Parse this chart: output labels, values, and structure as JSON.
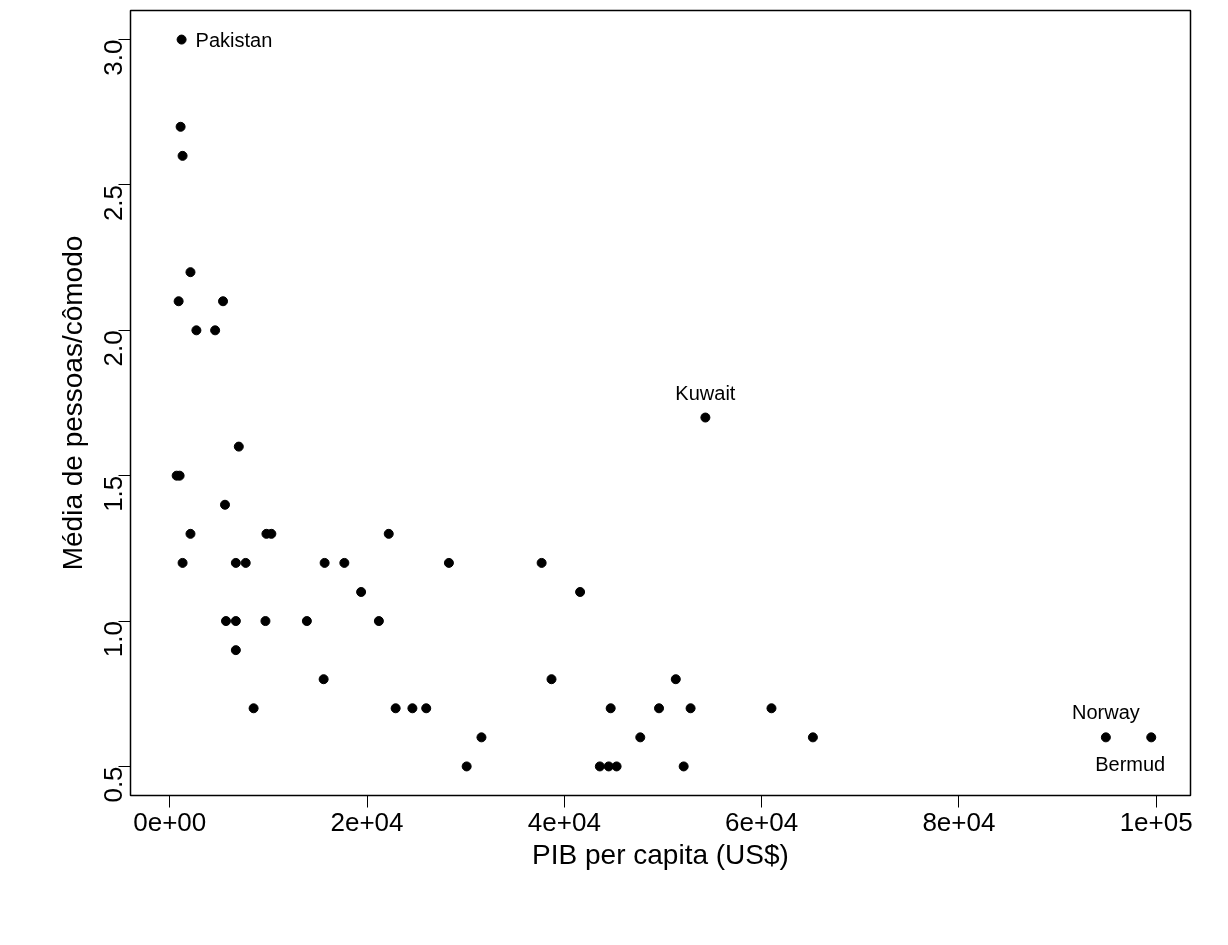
{
  "chart_data": {
    "type": "scatter",
    "xlabel": "PIB per capita (US$)",
    "ylabel": "Média de pessoas/cômodo",
    "color": "#000000",
    "marker": "circle",
    "grid": false,
    "x": [
      1200,
      1100,
      1300,
      2100,
      900,
      5400,
      2700,
      4600,
      54300,
      700,
      1000,
      7000,
      5600,
      2100,
      9800,
      10300,
      22200,
      1300,
      6700,
      7700,
      15700,
      17700,
      28300,
      37700,
      41600,
      19400,
      5700,
      6700,
      9700,
      13900,
      21200,
      6700,
      15600,
      38700,
      51300,
      8500,
      22900,
      24600,
      26000,
      44700,
      49600,
      52800,
      61000,
      31600,
      47700,
      65200,
      94900,
      99500,
      30100,
      43600,
      44500,
      45300,
      52100
    ],
    "values": [
      3.0,
      2.7,
      2.6,
      2.2,
      2.1,
      2.1,
      2.0,
      2.0,
      1.7,
      1.5,
      1.5,
      1.6,
      1.4,
      1.3,
      1.3,
      1.3,
      1.3,
      1.2,
      1.2,
      1.2,
      1.2,
      1.2,
      1.2,
      1.2,
      1.1,
      1.1,
      1.0,
      1.0,
      1.0,
      1.0,
      1.0,
      0.9,
      0.8,
      0.8,
      0.8,
      0.7,
      0.7,
      0.7,
      0.7,
      0.7,
      0.7,
      0.7,
      0.7,
      0.6,
      0.6,
      0.6,
      0.6,
      0.6,
      0.5,
      0.5,
      0.5,
      0.5,
      0.5
    ],
    "xlim": [
      -3980,
      103480
    ],
    "ylim": [
      0.4,
      3.1
    ],
    "xticks": [
      {
        "value": 0,
        "label": "0e+00"
      },
      {
        "value": 20000,
        "label": "2e+04"
      },
      {
        "value": 40000,
        "label": "4e+04"
      },
      {
        "value": 60000,
        "label": "6e+04"
      },
      {
        "value": 80000,
        "label": "8e+04"
      },
      {
        "value": 100000,
        "label": "1e+05"
      }
    ],
    "yticks": [
      0.5,
      {
        "value": 1,
        "label": "1.0"
      },
      1.5,
      {
        "value": 2,
        "label": "2.0"
      },
      2.5,
      {
        "value": 3,
        "label": "3.0"
      }
    ],
    "annotations": [
      {
        "text": "Pakistan",
        "x": 1200,
        "y": 3.0
      },
      {
        "text": "Kuwait",
        "x": 54300,
        "y": 1.7
      },
      {
        "text": "Norway",
        "x": 94900,
        "y": 0.6
      },
      {
        "text": "Bermud",
        "x": 99500,
        "y": 0.6
      }
    ]
  }
}
